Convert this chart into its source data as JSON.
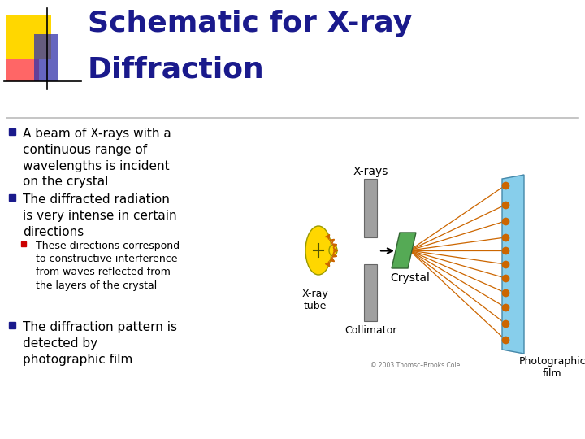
{
  "title_line1": "Schematic for X-ray",
  "title_line2": "Diffraction",
  "title_color": "#1a1a8c",
  "title_fontsize": 26,
  "bg_color": "#ffffff",
  "bullet_color": "#1a1a8c",
  "sub_bullet_color": "#cc0000",
  "text_color": "#000000",
  "bullet1": "A beam of X-rays with a\ncontinuous range of\nwavelengths is incident\non the crystal",
  "bullet2": "The diffracted radiation\nis very intense in certain\ndirections",
  "sub_bullet": "These directions correspond\nto constructive interference\nfrom waves reflected from\nthe layers of the crystal",
  "bullet3": "The diffraction pattern is\ndetected by\nphotographic film",
  "separator_color": "#bbbbbb",
  "logo_yellow": "#FFD700",
  "logo_red": "#FF5555",
  "logo_blue": "#3333AA",
  "collimator_color": "#a0a0a0",
  "crystal_color": "#55aa55",
  "film_color": "#87ceeb",
  "ray_color": "#cc6600",
  "dot_color": "#cc6600",
  "xray_label": "X-rays",
  "crystal_label": "Crystal",
  "xraytube_label": "X-ray\ntube",
  "collimator_label": "Collimator",
  "film_label": "Photographic\nfilm",
  "copyright": "© 2003 Thomsc–Brooks Cole"
}
